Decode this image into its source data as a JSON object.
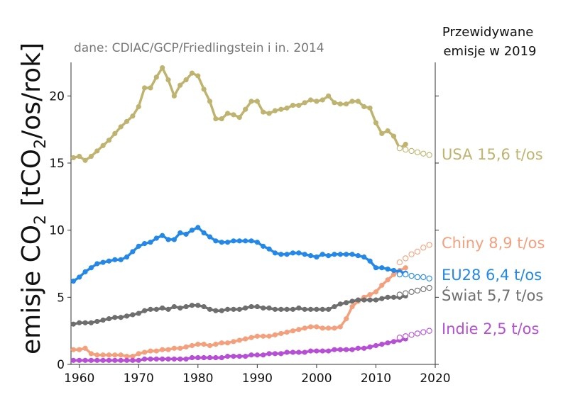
{
  "chart_data": {
    "type": "line",
    "title": "",
    "source_note": "dane: CDIAC/GCP/Friedlingstein i in. 2014",
    "forecast_note": [
      "Przewidywane",
      "emisje w 2019"
    ],
    "ylabel": {
      "main": "emisje CO",
      "sub": "2",
      "bracket_open": " [tCO",
      "sub2": "2",
      "rest": "/os/rok]"
    },
    "xlabel": "",
    "xlim": [
      1958.6,
      2020
    ],
    "ylim": [
      0,
      22.5
    ],
    "x_ticks": [
      1960,
      1970,
      1980,
      1990,
      2000,
      2010,
      2020
    ],
    "y_ticks": [
      0,
      5,
      10,
      15,
      20
    ],
    "series": [
      {
        "name": "USA",
        "label": "USA 15,6 t/os",
        "color": "#bfb46f",
        "years_start": 1959,
        "values": [
          15.4,
          15.5,
          15.2,
          15.5,
          15.9,
          16.3,
          16.7,
          17.2,
          17.7,
          18.1,
          18.5,
          19.2,
          20.6,
          20.6,
          21.4,
          22.1,
          21.2,
          20.0,
          20.8,
          21.2,
          21.7,
          21.5,
          20.5,
          19.6,
          18.3,
          18.3,
          18.7,
          18.6,
          18.4,
          19.0,
          19.6,
          19.6,
          18.8,
          18.7,
          18.9,
          19.0,
          19.1,
          19.3,
          19.3,
          19.5,
          19.7,
          19.6,
          19.7,
          20.0,
          19.5,
          19.4,
          19.4,
          19.6,
          19.6,
          19.2,
          19.1,
          18.0,
          17.2,
          17.4,
          17.0,
          16.1,
          16.4
        ],
        "projection_years_start": 2014,
        "projection": [
          16.1,
          16.0,
          15.9,
          15.8,
          15.7,
          15.6
        ]
      },
      {
        "name": "Chiny",
        "label": "Chiny 8,9 t/os",
        "color": "#f4a07c",
        "years_start": 1959,
        "values": [
          1.1,
          1.1,
          1.2,
          0.8,
          0.7,
          0.7,
          0.7,
          0.7,
          0.7,
          0.6,
          0.6,
          0.8,
          0.9,
          1.0,
          1.0,
          1.1,
          1.1,
          1.2,
          1.2,
          1.3,
          1.4,
          1.5,
          1.5,
          1.4,
          1.5,
          1.6,
          1.6,
          1.7,
          1.8,
          1.9,
          2.0,
          2.1,
          2.1,
          2.1,
          2.2,
          2.3,
          2.4,
          2.5,
          2.6,
          2.7,
          2.8,
          2.8,
          2.7,
          2.7,
          2.7,
          2.8,
          3.4,
          4.3,
          4.7,
          5.0,
          5.2,
          5.4,
          5.9,
          6.3,
          6.7,
          7.0,
          7.2
        ],
        "projection_years_start": 2014,
        "projection": [
          7.6,
          7.9,
          8.2,
          8.4,
          8.7,
          8.9
        ]
      },
      {
        "name": "EU28",
        "label": "EU28 6,4 t/os",
        "color": "#2388e8",
        "years_start": 1959,
        "values": [
          6.2,
          6.5,
          6.9,
          7.2,
          7.5,
          7.6,
          7.7,
          7.8,
          7.8,
          8.0,
          8.4,
          8.8,
          9.0,
          9.1,
          9.4,
          9.6,
          9.3,
          9.3,
          9.8,
          9.7,
          10.0,
          10.2,
          9.8,
          9.5,
          9.2,
          9.1,
          9.1,
          9.2,
          9.2,
          9.2,
          9.2,
          9.1,
          8.8,
          8.6,
          8.3,
          8.2,
          8.2,
          8.3,
          8.3,
          8.2,
          8.1,
          8.0,
          8.2,
          8.1,
          8.2,
          8.2,
          8.2,
          8.2,
          8.1,
          8.0,
          7.7,
          7.2,
          7.2,
          7.1,
          7.0,
          6.9,
          6.8
        ],
        "projection_years_start": 2014,
        "projection": [
          6.7,
          6.7,
          6.6,
          6.5,
          6.5,
          6.4
        ]
      },
      {
        "name": "Świat",
        "label": "Świat 5,7 t/os",
        "color": "#6e6e6e",
        "years_start": 1959,
        "values": [
          3.0,
          3.1,
          3.1,
          3.1,
          3.2,
          3.3,
          3.4,
          3.5,
          3.5,
          3.6,
          3.7,
          3.8,
          4.0,
          4.1,
          4.1,
          4.2,
          4.1,
          4.3,
          4.2,
          4.3,
          4.4,
          4.4,
          4.3,
          4.1,
          4.0,
          4.0,
          4.1,
          4.1,
          4.1,
          4.2,
          4.3,
          4.3,
          4.2,
          4.2,
          4.1,
          4.1,
          4.1,
          4.1,
          4.2,
          4.1,
          4.1,
          4.1,
          4.1,
          4.1,
          4.3,
          4.5,
          4.6,
          4.7,
          4.8,
          4.8,
          4.8,
          4.8,
          4.9,
          5.0,
          5.0,
          5.0,
          5.1
        ],
        "projection_years_start": 2014,
        "projection": [
          5.2,
          5.3,
          5.4,
          5.5,
          5.6,
          5.7
        ]
      },
      {
        "name": "Indie",
        "label": "Indie 2,5 t/os",
        "color": "#b64fd6",
        "years_start": 1959,
        "values": [
          0.3,
          0.3,
          0.3,
          0.3,
          0.3,
          0.3,
          0.3,
          0.3,
          0.3,
          0.3,
          0.3,
          0.3,
          0.4,
          0.4,
          0.4,
          0.4,
          0.4,
          0.4,
          0.4,
          0.4,
          0.5,
          0.5,
          0.5,
          0.5,
          0.5,
          0.5,
          0.6,
          0.6,
          0.6,
          0.6,
          0.7,
          0.7,
          0.7,
          0.8,
          0.8,
          0.8,
          0.9,
          0.9,
          0.9,
          0.9,
          1.0,
          1.0,
          1.0,
          1.0,
          1.1,
          1.1,
          1.1,
          1.1,
          1.2,
          1.2,
          1.3,
          1.4,
          1.5,
          1.6,
          1.7,
          1.8,
          1.9
        ],
        "projection_years_start": 2014,
        "projection": [
          2.0,
          2.1,
          2.2,
          2.3,
          2.4,
          2.5
        ]
      }
    ],
    "legend": "right"
  }
}
